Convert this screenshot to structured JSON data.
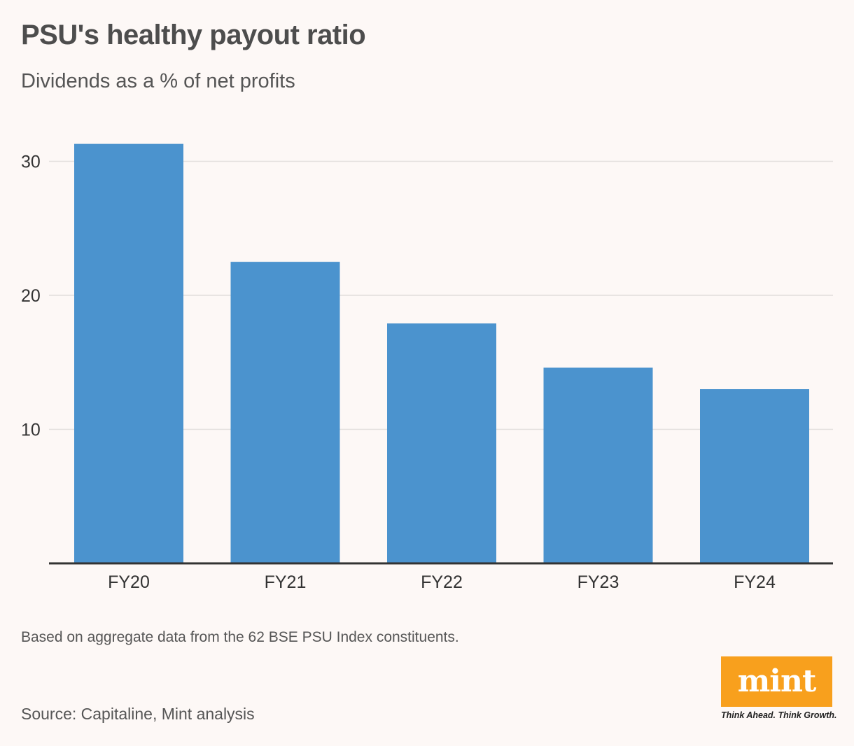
{
  "chart_data": {
    "type": "bar",
    "title": "PSU's healthy payout ratio",
    "subtitle": "Dividends as a % of net profits",
    "categories": [
      "FY20",
      "FY21",
      "FY22",
      "FY23",
      "FY24"
    ],
    "values": [
      31.3,
      22.5,
      17.9,
      14.6,
      13.0
    ],
    "ylim": [
      0,
      30
    ],
    "yticks": [
      10,
      20,
      30
    ],
    "xlabel": "",
    "ylabel": "",
    "grid": true,
    "bar_color": "#4b93ce"
  },
  "footer": {
    "note": "Based on aggregate data from the 62 BSE PSU Index constituents.",
    "source": "Source: Capitaline, Mint analysis"
  },
  "brand": {
    "logo_text": "mint",
    "tagline": "Think Ahead. Think Growth.",
    "color": "#f8a01d"
  }
}
